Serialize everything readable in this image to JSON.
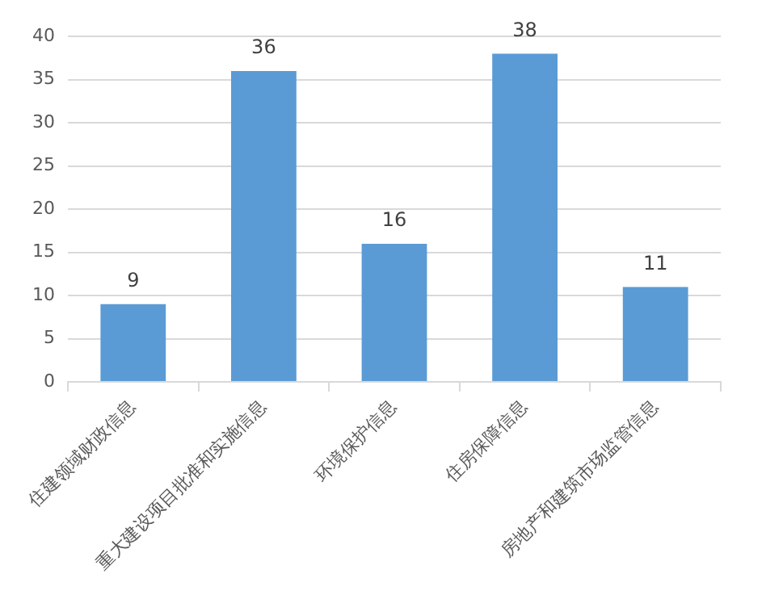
{
  "chart_data": {
    "type": "bar",
    "categories": [
      "住建领域财政信息",
      "重大建设项目批准和实施信息",
      "环境保护信息",
      "住房保障信息",
      "房地产和建筑市场监管信息"
    ],
    "values": [
      9,
      36,
      16,
      38,
      11
    ],
    "color": "#5b9bd5",
    "ylim": [
      0,
      40
    ],
    "yticks": [
      0,
      5,
      10,
      15,
      20,
      25,
      30,
      35,
      40
    ],
    "grid": "y",
    "data_labels": true
  }
}
